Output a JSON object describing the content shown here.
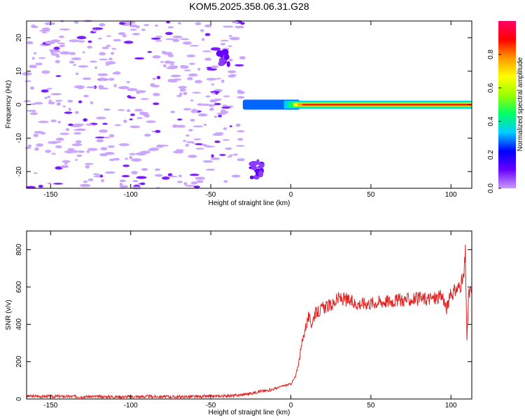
{
  "title": "KOM5.2025.358.06.31.G28",
  "chart_data": [
    {
      "type": "heatmap",
      "xlabel": "Height of straight line (km)",
      "ylabel": "Frequency (Hz)",
      "xlim": [
        -165,
        113
      ],
      "ylim": [
        -25,
        25
      ],
      "xticks": [
        -150,
        -100,
        -50,
        0,
        50,
        100
      ],
      "yticks": [
        -20,
        -10,
        0,
        10,
        20
      ],
      "colorbar": {
        "label": "Normalized spectral amplitude",
        "range": [
          0.0,
          1.0
        ],
        "ticks": [
          0.0,
          0.2,
          0.4,
          0.6,
          0.8
        ],
        "colormap": [
          "#cc99ff",
          "#6600ff",
          "#0000ff",
          "#00ccff",
          "#00ff66",
          "#99ff00",
          "#ffff00",
          "#ff9900",
          "#ff0000",
          "#ff0066"
        ]
      },
      "features": [
        {
          "x_range": [
            -165,
            -30
          ],
          "freq_range": [
            -25,
            25
          ],
          "amplitude": 0.1
        },
        {
          "x_range": [
            -25,
            -18
          ],
          "freq_range": [
            -22,
            -17
          ],
          "amplitude": 0.2
        },
        {
          "x_range": [
            -45,
            -38
          ],
          "freq_range": [
            12,
            16
          ],
          "amplitude": 0.2
        },
        {
          "x_range": [
            -30,
            113
          ],
          "freq_range": [
            -1,
            1
          ],
          "amplitude": 0.9
        }
      ]
    },
    {
      "type": "line",
      "xlabel": "Height of straight line (km)",
      "ylabel": "SNR (v/v)",
      "xlim": [
        -165,
        113
      ],
      "ylim": [
        0,
        900
      ],
      "xticks": [
        -150,
        -100,
        -50,
        0,
        50,
        100
      ],
      "yticks": [
        0,
        200,
        400,
        600,
        800
      ],
      "color": "#e32222",
      "series": [
        {
          "x": [
            -165,
            -150,
            -130,
            -110,
            -90,
            -70,
            -50,
            -35,
            -25,
            -20,
            -15,
            -10,
            -5,
            0,
            3,
            5,
            7,
            9,
            11,
            13,
            15,
            18,
            20,
            25,
            30,
            35,
            40,
            50,
            60,
            70,
            80,
            90,
            95,
            97,
            100,
            105,
            108,
            109,
            110,
            111,
            113
          ],
          "y": [
            15,
            14,
            13,
            12,
            13,
            12,
            14,
            18,
            30,
            40,
            45,
            55,
            70,
            80,
            120,
            200,
            300,
            380,
            440,
            400,
            460,
            470,
            490,
            500,
            540,
            530,
            510,
            515,
            525,
            530,
            535,
            540,
            550,
            480,
            560,
            600,
            650,
            780,
            300,
            560,
            580
          ]
        }
      ]
    }
  ]
}
